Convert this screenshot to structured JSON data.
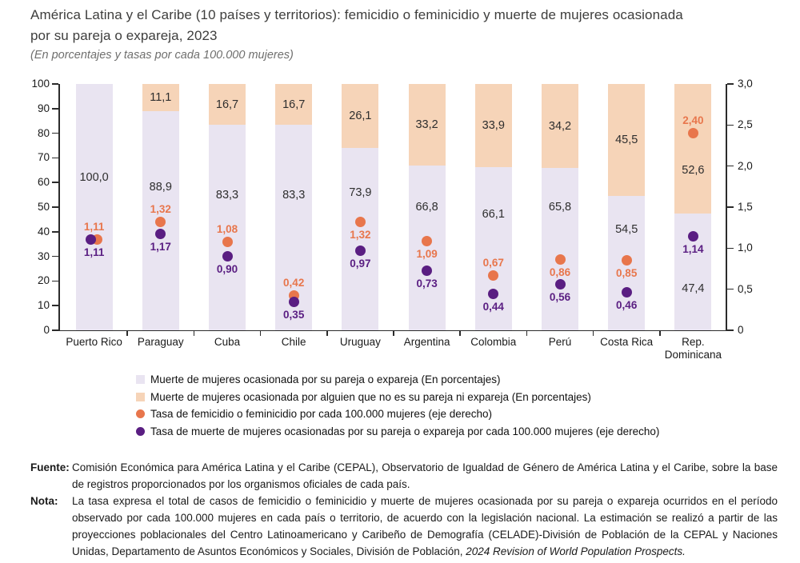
{
  "chart_data": {
    "type": "bar",
    "stacked": true,
    "title": "América Latina y el Caribe (10 países y territorios): femicidio o feminicidio y muerte de mujeres ocasionada por su pareja o expareja, 2023",
    "subtitle": "(En porcentajes y tasas por cada 100.000 mujeres)",
    "categories": [
      "Puerto Rico",
      "Paraguay",
      "Cuba",
      "Chile",
      "Uruguay",
      "Argentina",
      "Colombia",
      "Perú",
      "Costa Rica",
      "Rep.\nDominicana"
    ],
    "series": [
      {
        "name": "Muerte de mujeres ocasionada por su pareja o expareja (En porcentajes)",
        "mark": "bar",
        "axis": "left",
        "color_key": "bar_pareja",
        "values": [
          100.0,
          88.9,
          83.3,
          83.3,
          73.9,
          66.8,
          66.1,
          65.8,
          54.5,
          47.4
        ],
        "labels": [
          "100,0",
          "88,9",
          "83,3",
          "83,3",
          "73,9",
          "66,8",
          "66,1",
          "65,8",
          "54,5",
          "47,4"
        ]
      },
      {
        "name": "Muerte de mujeres ocasionada por alguien que no es su pareja ni expareja (En porcentajes)",
        "mark": "bar",
        "axis": "left",
        "color_key": "bar_otro",
        "values": [
          null,
          11.1,
          16.7,
          16.7,
          26.1,
          33.2,
          33.9,
          34.2,
          45.5,
          52.6
        ],
        "labels": [
          null,
          "11,1",
          "16,7",
          "16,7",
          "26,1",
          "33,2",
          "33,9",
          "34,2",
          "45,5",
          "52,6"
        ]
      },
      {
        "name": "Tasa de femicidio o feminicidio por cada 100.000 mujeres (eje derecho)",
        "mark": "dot",
        "axis": "right",
        "color_key": "dot_femicidio",
        "values": [
          1.11,
          1.32,
          1.08,
          0.42,
          1.32,
          1.09,
          0.67,
          0.86,
          0.85,
          2.4
        ],
        "labels": [
          "1,11",
          "1,32",
          "1,08",
          "0,42",
          "1,32",
          "1,09",
          "0,67",
          "0,86",
          "0,85",
          "2,40"
        ]
      },
      {
        "name": "Tasa de muerte de mujeres ocasionadas por su pareja o expareja por cada 100.000 mujeres (eje derecho)",
        "mark": "dot",
        "axis": "right",
        "color_key": "dot_pareja",
        "values": [
          1.11,
          1.17,
          0.9,
          0.35,
          0.97,
          0.73,
          0.44,
          0.56,
          0.46,
          1.14
        ],
        "labels": [
          "1,11",
          "1,17",
          "0,90",
          "0,35",
          "0,97",
          "0,73",
          "0,44",
          "0,56",
          "0,46",
          "1,14"
        ]
      }
    ],
    "left_axis": {
      "min": 0,
      "max": 100,
      "step": 10,
      "ticks": [
        {
          "v": 0,
          "label": "0"
        },
        {
          "v": 10,
          "label": "10"
        },
        {
          "v": 20,
          "label": "20"
        },
        {
          "v": 30,
          "label": "30"
        },
        {
          "v": 40,
          "label": "40"
        },
        {
          "v": 50,
          "label": "50"
        },
        {
          "v": 60,
          "label": "60"
        },
        {
          "v": 70,
          "label": "70"
        },
        {
          "v": 80,
          "label": "80"
        },
        {
          "v": 90,
          "label": "90"
        },
        {
          "v": 100,
          "label": "100"
        }
      ]
    },
    "right_axis": {
      "min": 0,
      "max": 3,
      "step": 0.5,
      "ticks": [
        {
          "v": 0,
          "label": "0"
        },
        {
          "v": 0.5,
          "label": "0,5"
        },
        {
          "v": 1,
          "label": "1,0"
        },
        {
          "v": 1.5,
          "label": "1,5"
        },
        {
          "v": 2,
          "label": "2,0"
        },
        {
          "v": 2.5,
          "label": "2,5"
        },
        {
          "v": 3,
          "label": "3,0"
        }
      ]
    },
    "layout_hints": {
      "legend_position": "bottom",
      "grid": false,
      "pareja_label_y": [
        62,
        58,
        55,
        55,
        56,
        50,
        47,
        50,
        41,
        17
      ],
      "otro_label_y": [
        null,
        null,
        null,
        null,
        null,
        null,
        null,
        null,
        null,
        65
      ],
      "fem_label_pos": [
        "above",
        "above",
        "above",
        "above",
        "below",
        "below",
        "above",
        "below",
        "below",
        "above"
      ],
      "overlap_dots_index": 0
    },
    "colors": {
      "bar_pareja": "#e9e4f1",
      "bar_otro": "#f6d4b8",
      "dot_femicidio": "#e8764c",
      "dot_pareja": "#5a1e82",
      "axis": "#2b2b2b"
    }
  },
  "footer": {
    "fuente_label": "Fuente:",
    "fuente_text": "Comisión Económica para América Latina y el Caribe (CEPAL), Observatorio de Igualdad de Género de América Latina y el Caribe, sobre la base de registros proporcionados por los organismos oficiales de cada país.",
    "nota_label": "Nota:",
    "nota_text": "La tasa expresa el total de casos de femicidio o feminicidio y muerte de mujeres ocasionada por su pareja o expareja ocurridos en el período observado por cada 100.000 mujeres en cada país o territorio, de acuerdo con la legislación nacional. La estimación se realizó a partir de las proyecciones poblacionales del Centro Latinoamericano y Caribeño de Demografía (CELADE)-División de Población de la CEPAL y Naciones Unidas, Departamento de Asuntos Económicos y Sociales, División de Población, ",
    "nota_italic": "2024 Revision of World Population Prospects."
  }
}
